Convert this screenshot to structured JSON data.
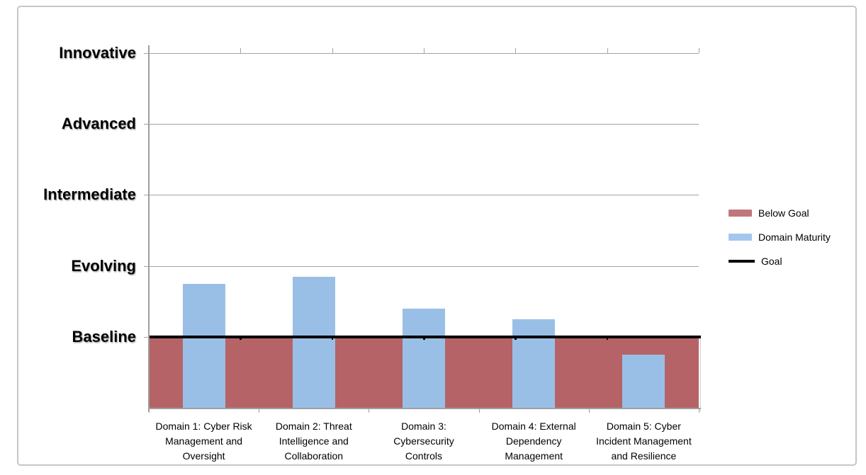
{
  "chart_data": {
    "type": "bar",
    "y_axis": {
      "tick_labels": [
        "Innovative",
        "Advanced",
        "Intermediate",
        "Evolving",
        "Baseline"
      ],
      "tick_values": [
        5,
        4,
        3,
        2,
        1
      ],
      "min": 0,
      "max": 5,
      "gridlines": true
    },
    "x_axis": {
      "categories": [
        "Domain 1: Cyber Risk Management and Oversight",
        "Domain 2: Threat Intelligence and Collaboration",
        "Domain 3: Cybersecurity Controls",
        "Domain 4: External Dependency Management",
        "Domain 5: Cyber Incident Management and Resilience"
      ],
      "category_lines": [
        [
          "Domain 1: Cyber Risk",
          "Management and",
          "Oversight"
        ],
        [
          "Domain 2: Threat",
          "Intelligence and",
          "Collaboration"
        ],
        [
          "Domain 3:",
          "Cybersecurity",
          "Controls"
        ],
        [
          "Domain 4: External",
          "Dependency",
          "Management"
        ],
        [
          "Domain 5: Cyber",
          "Incident Management",
          "and Resilience"
        ]
      ]
    },
    "series": [
      {
        "name": "Below Goal",
        "type": "area",
        "value": 1.0,
        "color": "#b56366"
      },
      {
        "name": "Domain Maturity",
        "type": "column",
        "values": [
          1.75,
          1.85,
          1.4,
          1.25,
          0.75
        ],
        "color": "#9abfe6"
      },
      {
        "name": "Goal",
        "type": "line",
        "value": 1.0,
        "color": "#000000"
      }
    ],
    "legend": {
      "position": "right",
      "items": [
        {
          "label": "Below Goal",
          "swatch": "rect",
          "color": "#c1767c"
        },
        {
          "label": "Domain Maturity",
          "swatch": "rect",
          "color": "#a3c6ee"
        },
        {
          "label": "Goal",
          "swatch": "line",
          "color": "#000000"
        }
      ]
    },
    "style": {
      "grid_color": "#a3a3a3",
      "axis_color": "#9e9e9e",
      "label_color": "#000000"
    }
  }
}
